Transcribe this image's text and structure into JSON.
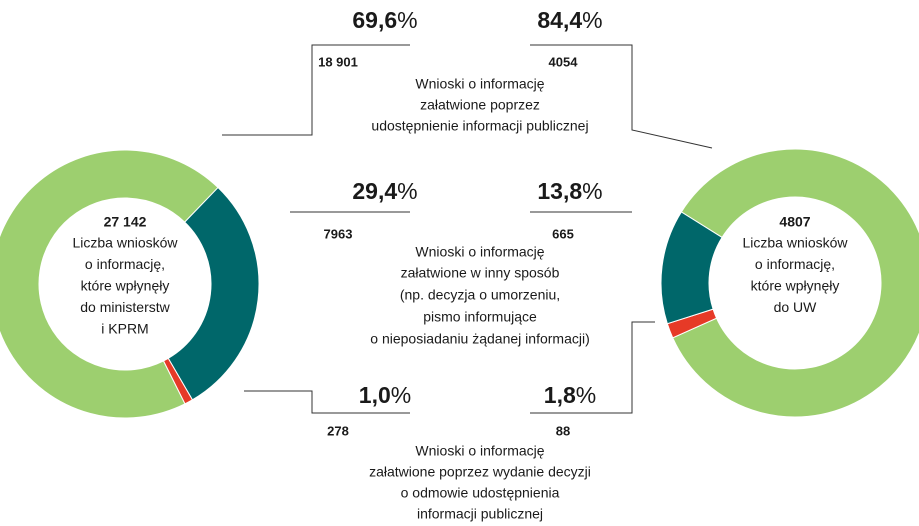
{
  "category_labels": [
    [
      "Wnioski o informację",
      "załatwione poprzez",
      "udostępnienie informacji publicznej"
    ],
    [
      "Wnioski o informację",
      "załatwione w inny sposób",
      "(np. decyzja o umorzeniu,",
      "pismo informujące",
      "o nieposiadaniu żądanej informacji)"
    ],
    [
      "Wnioski o informację",
      "załatwione poprzez wydanie decyzji",
      "o odmowie udostępnienia",
      "informacji publicznej"
    ]
  ],
  "chart_data": [
    {
      "type": "donut",
      "values": [
        69.6,
        29.4,
        1.0
      ],
      "value_labels": [
        "69,6%",
        "29,4%",
        "1,0%"
      ],
      "counts": [
        18901,
        7963,
        278
      ],
      "count_labels": [
        "18 901",
        "7963",
        "278"
      ],
      "center_value": 27142,
      "center_value_label": "27 142",
      "center_label": [
        "Liczba wniosków",
        "o informację,",
        "które wpłynęły",
        "do ministerstw",
        "i KPRM"
      ],
      "colors": [
        "#9dcf6f",
        "#00676a",
        "#e63a27"
      ]
    },
    {
      "type": "donut",
      "values": [
        84.4,
        13.8,
        1.8
      ],
      "value_labels": [
        "84,4%",
        "13,8%",
        "1,8%"
      ],
      "counts": [
        4054,
        665,
        88
      ],
      "count_labels": [
        "4054",
        "665",
        "88"
      ],
      "center_value": 4807,
      "center_value_label": "4807",
      "center_label": [
        "Liczba wniosków",
        "o informację,",
        "które wpłynęły",
        "do UW"
      ],
      "colors": [
        "#9dcf6f",
        "#00676a",
        "#e63a27"
      ]
    }
  ]
}
